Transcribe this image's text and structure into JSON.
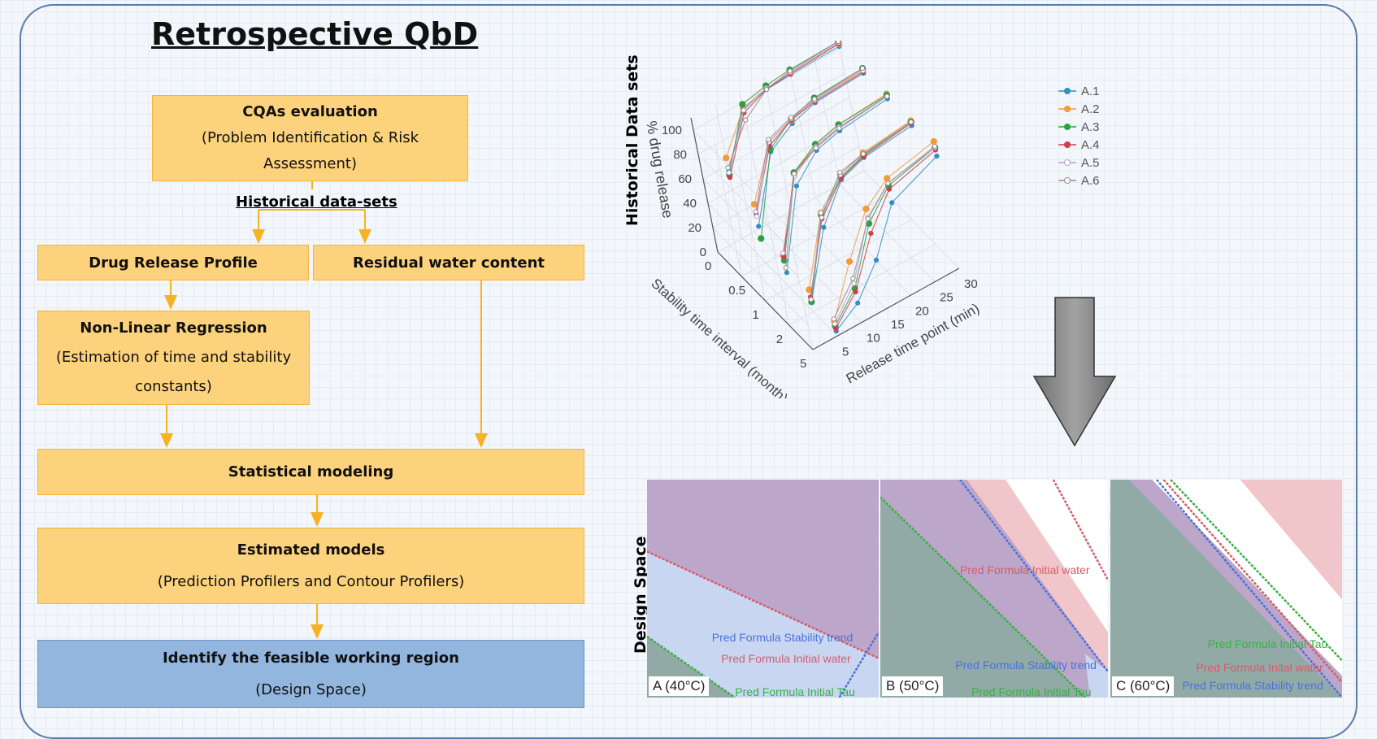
{
  "title": "Retrospective QbD",
  "flow": {
    "cqas": {
      "title": "CQAs evaluation",
      "sub": "(Problem Identification & Risk Assessment)"
    },
    "historical": "Historical data-sets",
    "drug_release": "Drug Release Profile",
    "residual_water": "Residual water content",
    "nonlinear": {
      "title": "Non-Linear Regression",
      "sub": "(Estimation of time and stability constants)"
    },
    "statistical": "Statistical modeling",
    "estimated": {
      "title": "Estimated models",
      "sub": "(Prediction Profilers and Contour Profilers)"
    },
    "identify": {
      "title": "Identify the feasible working region",
      "sub": "(Design Space)"
    }
  },
  "colors": {
    "box": "#fdd27c",
    "box_border": "#f2b63d",
    "arrow": "#f5b324",
    "identify_box": "#93b6df",
    "frame": "#5b7ca8",
    "big_arrow": "#8c8c8c"
  },
  "historical_label": "Historical Data sets",
  "design_space_label": "Design Space",
  "chart_data": {
    "type": "line3d",
    "zlabel": "% drug release",
    "xlabel": "Stability time interval (month)",
    "ylabel": "Release time point (min)",
    "stability_ticks": [
      "0",
      "0.5",
      "1",
      "2",
      "5"
    ],
    "time_ticks": [
      "5",
      "10",
      "15",
      "20",
      "25",
      "30"
    ],
    "z_ticks": [
      "0",
      "20",
      "40",
      "60",
      "80",
      "100"
    ],
    "time_points": [
      5,
      10,
      15,
      20,
      30
    ],
    "grid": true,
    "legend_position": "right",
    "series": [
      {
        "name": "A.1",
        "color": "#2f8fc6",
        "marker": "circle",
        "values": [
          [
            55,
            95,
            100,
            101,
            102
          ],
          [
            30,
            80,
            92,
            98,
            100
          ],
          [
            12,
            72,
            90,
            95,
            99
          ],
          [
            8,
            58,
            86,
            93,
            97
          ],
          [
            4,
            16,
            40,
            76,
            92
          ]
        ]
      },
      {
        "name": "A.2",
        "color": "#f39a3a",
        "marker": "square",
        "values": [
          [
            66,
            96,
            101,
            102,
            104
          ],
          [
            48,
            88,
            95,
            100,
            103
          ],
          [
            26,
            82,
            95,
            100,
            103
          ],
          [
            18,
            70,
            90,
            97,
            101
          ],
          [
            12,
            50,
            82,
            96,
            104
          ]
        ]
      },
      {
        "name": "A.3",
        "color": "#2ea043",
        "marker": "diamond",
        "values": [
          [
            52,
            99,
            103,
            105,
            106
          ],
          [
            20,
            82,
            96,
            102,
            104
          ],
          [
            22,
            83,
            95,
            100,
            102
          ],
          [
            8,
            68,
            88,
            95,
            100
          ],
          [
            8,
            28,
            70,
            90,
            99
          ]
        ]
      },
      {
        "name": "A.4",
        "color": "#d43b4b",
        "marker": "plus",
        "values": [
          [
            50,
            92,
            100,
            102,
            104
          ],
          [
            40,
            85,
            95,
            99,
            101
          ],
          [
            25,
            82,
            93,
            98,
            101
          ],
          [
            12,
            65,
            87,
            94,
            99
          ],
          [
            6,
            25,
            62,
            87,
            97
          ]
        ]
      },
      {
        "name": "A.5",
        "color": "#b9a0cf",
        "marker": "open-circle",
        "values": [
          [
            54,
            94,
            101,
            103,
            105
          ],
          [
            38,
            88,
            96,
            100,
            102
          ],
          [
            28,
            80,
            93,
            98,
            101
          ],
          [
            10,
            70,
            90,
            96,
            100
          ],
          [
            10,
            32,
            75,
            92,
            99
          ]
        ]
      },
      {
        "name": "A.6",
        "color": "#9d8a88",
        "marker": "open-diamond",
        "values": [
          [
            58,
            86,
            100,
            104,
            106
          ],
          [
            42,
            90,
            97,
            101,
            104
          ],
          [
            16,
            82,
            92,
            97,
            101
          ],
          [
            10,
            66,
            92,
            96,
            100
          ],
          [
            14,
            36,
            74,
            92,
            100
          ]
        ]
      }
    ]
  },
  "panels": [
    {
      "label": "A (40°C)",
      "stability": "Pred Formula Stability trend",
      "water": "Pred Formula Initial water",
      "tau": "Pred Formula Initial Tau"
    },
    {
      "label": "B (50°C)",
      "stability": "Pred Formula Stability trend",
      "water": "Pred Formula Initial water",
      "tau": "Pred Formula Initial Tau"
    },
    {
      "label": "C (60°C)",
      "stability": "Pred Formula Stability trend",
      "water": "Pred Formula Inital water",
      "tau": "Pred Formula Initial Tau"
    }
  ],
  "panel_colors": {
    "purple": "#bca6c9",
    "light_blue": "#c9d6f2",
    "teal": "#91aaa6",
    "pink": "#f1c6cb",
    "green": "#3bb045",
    "red": "#d65c68",
    "blue": "#4a72d8"
  }
}
